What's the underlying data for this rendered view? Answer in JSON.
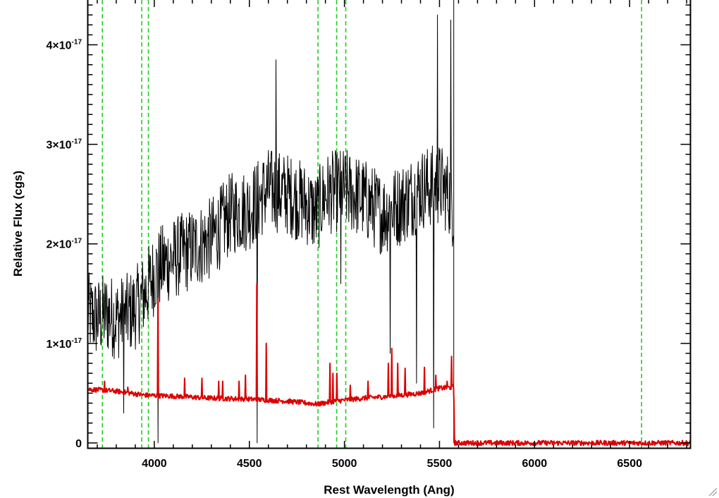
{
  "chart_data": {
    "type": "line",
    "xlabel": "Rest Wavelength (Ang)",
    "ylabel": "Relative Flux (cgs)",
    "xlim": [
      3650,
      6820
    ],
    "ylim": [
      -5e-19,
      4.45e-17
    ],
    "xticks": [
      {
        "value": 4000,
        "label": "4000"
      },
      {
        "value": 4500,
        "label": "4500"
      },
      {
        "value": 5000,
        "label": "5000"
      },
      {
        "value": 5500,
        "label": "5500"
      },
      {
        "value": 6000,
        "label": "6000"
      },
      {
        "value": 6500,
        "label": "6500"
      }
    ],
    "yticks": [
      {
        "value": 0,
        "mant": "0",
        "times": "",
        "base": "",
        "exp": ""
      },
      {
        "value": 1e-17,
        "mant": "1",
        "times": "×",
        "base": "10",
        "exp": "-17"
      },
      {
        "value": 2e-17,
        "mant": "2",
        "times": "×",
        "base": "10",
        "exp": "-17"
      },
      {
        "value": 3e-17,
        "mant": "3",
        "times": "×",
        "base": "10",
        "exp": "-17"
      },
      {
        "value": 4e-17,
        "mant": "4",
        "times": "×",
        "base": "10",
        "exp": "-17"
      }
    ],
    "grid": false,
    "reference_lines": {
      "color": "#22cc22",
      "style": "dashed",
      "x": [
        3727,
        3934,
        3969,
        4861,
        4959,
        5007,
        6563
      ]
    },
    "series": [
      {
        "color": "#000000",
        "stroke_px": 1,
        "points": [
          [
            3650,
            1.3e-17
          ],
          [
            3700,
            1.25e-17
          ],
          [
            3750,
            1.3e-17
          ],
          [
            3800,
            1.25e-17
          ],
          [
            3850,
            1.28e-17
          ],
          [
            3900,
            1.35e-17
          ],
          [
            3950,
            1.5e-17
          ],
          [
            4000,
            1.7e-17
          ],
          [
            4050,
            1.8e-17
          ],
          [
            4100,
            1.85e-17
          ],
          [
            4200,
            1.95e-17
          ],
          [
            4300,
            2.05e-17
          ],
          [
            4400,
            2.3e-17
          ],
          [
            4500,
            2.35e-17
          ],
          [
            4600,
            2.55e-17
          ],
          [
            4700,
            2.5e-17
          ],
          [
            4800,
            2.4e-17
          ],
          [
            4850,
            2.3e-17
          ],
          [
            4900,
            2.5e-17
          ],
          [
            5000,
            2.55e-17
          ],
          [
            5100,
            2.45e-17
          ],
          [
            5200,
            2.3e-17
          ],
          [
            5300,
            2.4e-17
          ],
          [
            5400,
            2.55e-17
          ],
          [
            5500,
            2.6e-17
          ],
          [
            5550,
            2.5e-17
          ],
          [
            5580,
            2.3e-17
          ]
        ],
        "noise_amplitude": 4.2e-18,
        "spikes": [
          [
            4020,
            0.0
          ],
          [
            4540,
            0.0
          ],
          [
            4640,
            3.85e-17
          ],
          [
            5490,
            4.3e-17
          ],
          [
            5560,
            4.25e-17
          ],
          [
            5470,
            1.5e-18
          ],
          [
            3840,
            3e-18
          ],
          [
            5380,
            6e-18
          ],
          [
            5240,
            9e-18
          ],
          [
            4980,
            1.6e-17
          ]
        ],
        "cutoff": {
          "x": 5575,
          "top": 4.45e-17,
          "after_value": 0
        }
      },
      {
        "color": "#dd0000",
        "stroke_px": 2,
        "points": [
          [
            3650,
            5.4e-18
          ],
          [
            3800,
            5.2e-18
          ],
          [
            3950,
            4.8e-18
          ],
          [
            4100,
            4.7e-18
          ],
          [
            4300,
            4.5e-18
          ],
          [
            4500,
            4.4e-18
          ],
          [
            4700,
            4.2e-18
          ],
          [
            4860,
            3.9e-18
          ],
          [
            4950,
            4.2e-18
          ],
          [
            5100,
            4.5e-18
          ],
          [
            5250,
            4.7e-18
          ],
          [
            5400,
            5e-18
          ],
          [
            5500,
            5.5e-18
          ],
          [
            5575,
            5.6e-18
          ],
          [
            5580,
            0.0
          ],
          [
            6820,
            0.0
          ]
        ],
        "noise_amplitude": 2.5e-19,
        "spikes": [
          [
            3740,
            6.2e-18
          ],
          [
            3860,
            5.6e-18
          ],
          [
            4020,
            1.45e-17
          ],
          [
            4160,
            6.5e-18
          ],
          [
            4250,
            6.5e-18
          ],
          [
            4340,
            6.2e-18
          ],
          [
            4360,
            6.2e-18
          ],
          [
            4445,
            6.2e-18
          ],
          [
            4480,
            6.8e-18
          ],
          [
            4540,
            1.6e-17
          ],
          [
            4590,
            1e-17
          ],
          [
            4925,
            8e-18
          ],
          [
            4940,
            7e-18
          ],
          [
            4960,
            7e-18
          ],
          [
            5030,
            5.8e-18
          ],
          [
            5125,
            6.2e-18
          ],
          [
            5230,
            8e-18
          ],
          [
            5250,
            9.5e-18
          ],
          [
            5280,
            8e-18
          ],
          [
            5320,
            7.5e-18
          ],
          [
            5420,
            7.6e-18
          ],
          [
            5480,
            6.8e-18
          ],
          [
            5540,
            6.2e-18
          ],
          [
            5565,
            8.7e-18
          ]
        ]
      }
    ]
  }
}
